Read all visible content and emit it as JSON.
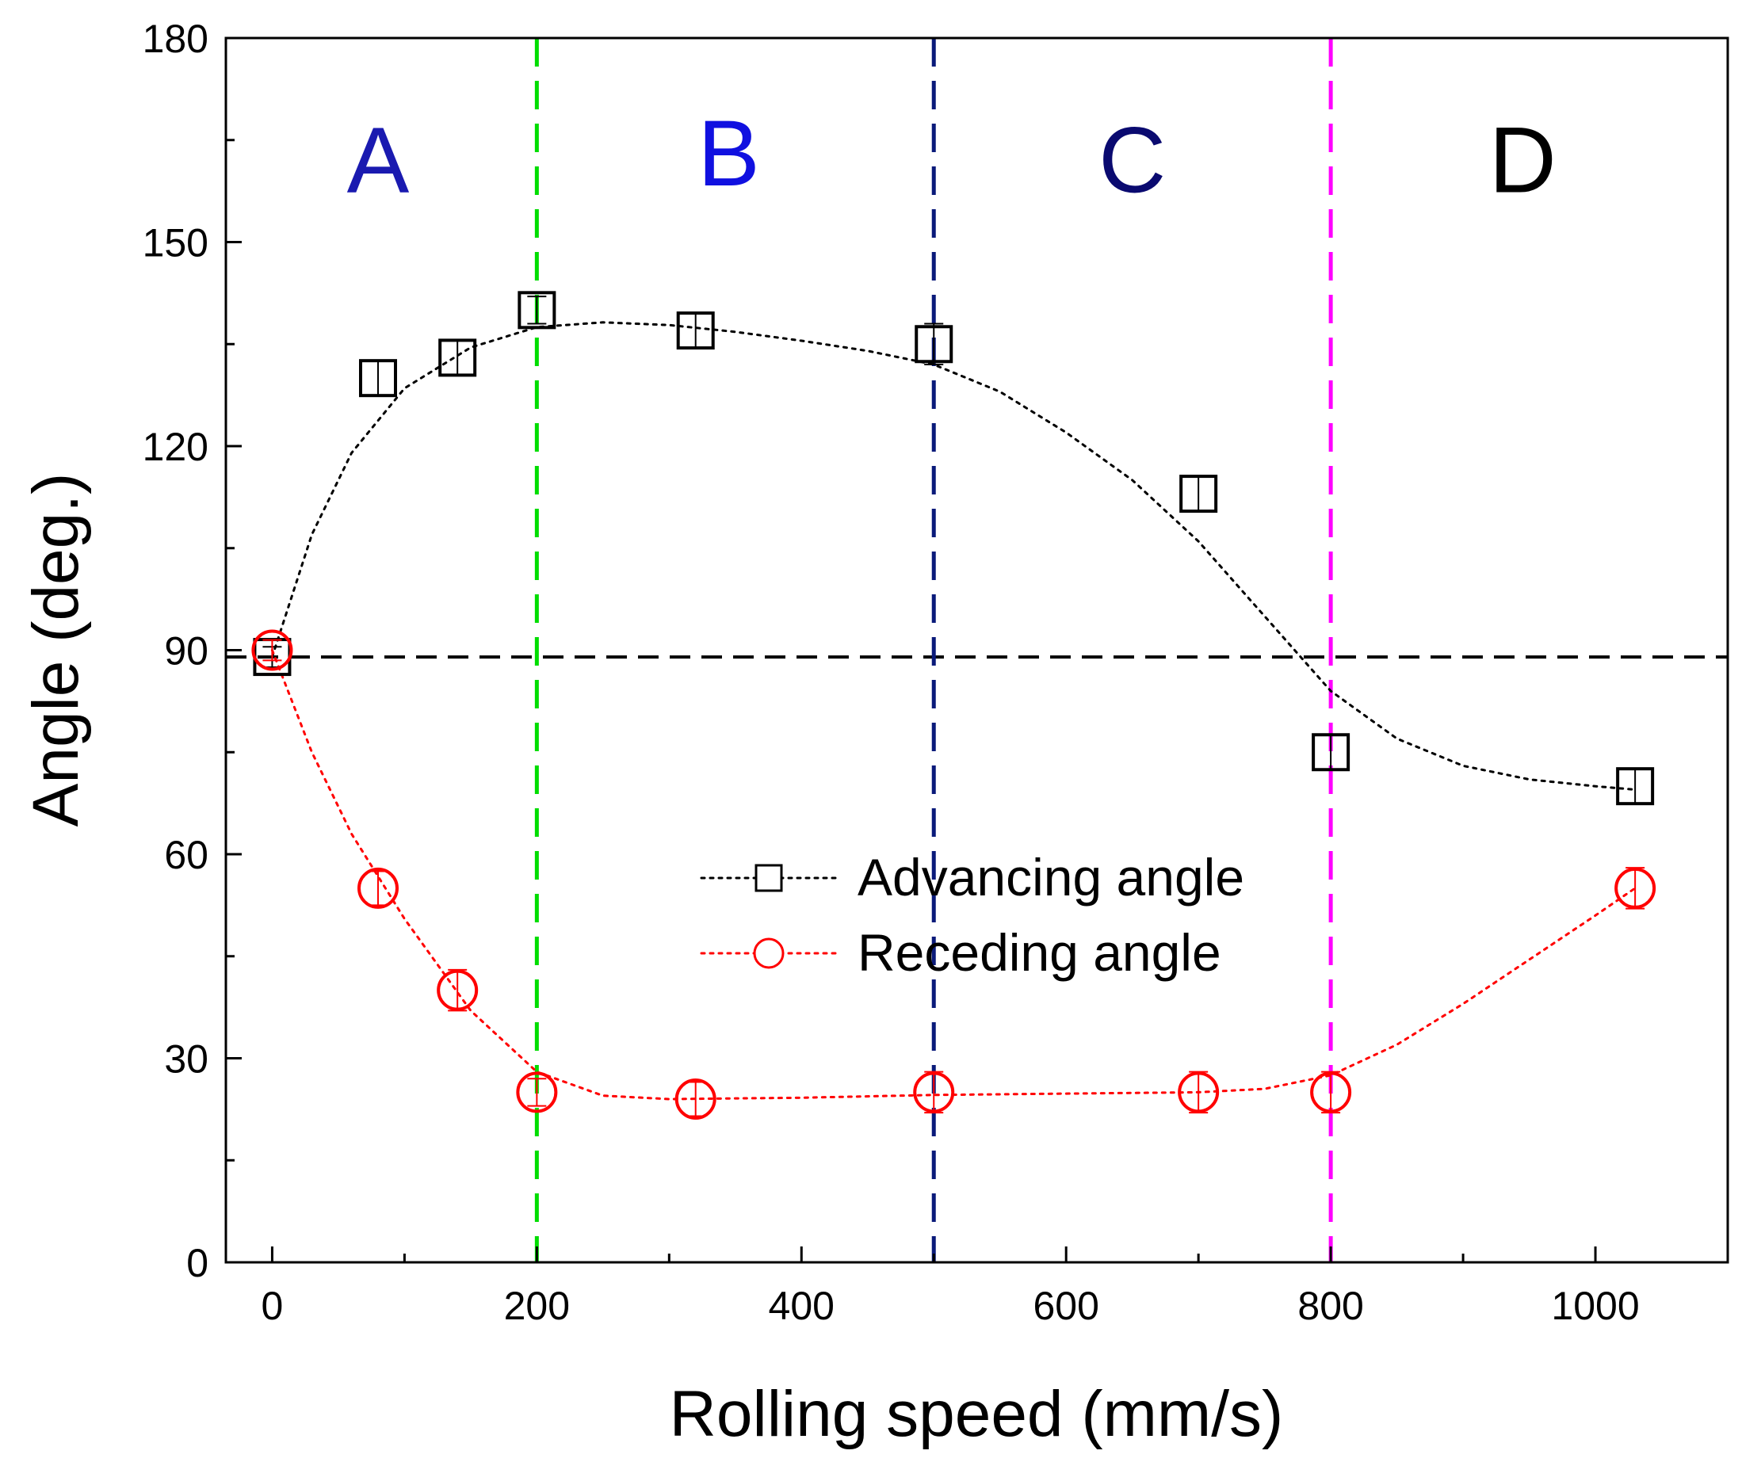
{
  "chart_data": {
    "type": "scatter",
    "title": "",
    "xlabel": "Rolling speed (mm/s)",
    "ylabel": "Angle (deg.)",
    "xlim": [
      -35,
      1100
    ],
    "ylim": [
      0,
      180
    ],
    "xticks": [
      0,
      200,
      400,
      600,
      800,
      1000
    ],
    "yticks": [
      0,
      30,
      60,
      90,
      120,
      150,
      180
    ],
    "x_minor_step": 100,
    "y_minor_step": 15,
    "grid": false,
    "legend_placement": "center",
    "series": [
      {
        "name": "Advancing angle",
        "marker": "square",
        "color": "#000000",
        "line": "dotted",
        "x": [
          0,
          80,
          140,
          200,
          320,
          500,
          700,
          800,
          1030
        ],
        "y": [
          89,
          130,
          133,
          140,
          137,
          135,
          113,
          75,
          70
        ],
        "error": [
          1.5,
          2.5,
          2.5,
          2,
          2.5,
          3,
          2.5,
          2.5,
          2.5
        ],
        "fit_x": [
          0,
          30,
          60,
          100,
          150,
          200,
          250,
          300,
          350,
          400,
          450,
          500,
          550,
          600,
          650,
          700,
          750,
          800,
          850,
          900,
          950,
          1000,
          1030
        ],
        "fit_y": [
          89,
          107,
          119,
          128.5,
          134.5,
          137.5,
          138.2,
          137.8,
          136.8,
          135.5,
          134,
          132,
          128,
          122,
          115,
          106,
          95,
          84,
          77,
          73,
          71,
          70,
          69.5
        ]
      },
      {
        "name": "Receding angle",
        "marker": "circle",
        "color": "#ff0000",
        "line": "dotted",
        "x": [
          0,
          80,
          140,
          200,
          320,
          500,
          700,
          800,
          1030
        ],
        "y": [
          90,
          55,
          40,
          25,
          24,
          25,
          25,
          25,
          55
        ],
        "error": [
          1.5,
          2.5,
          3,
          2,
          2.5,
          3,
          3,
          3,
          3
        ],
        "fit_x": [
          0,
          30,
          60,
          100,
          150,
          200,
          250,
          300,
          400,
          500,
          600,
          700,
          750,
          800,
          850,
          900,
          950,
          1000,
          1030
        ],
        "fit_y": [
          90,
          75,
          63,
          50.5,
          37,
          28,
          24.5,
          24,
          24.2,
          24.6,
          24.8,
          25,
          25.5,
          27.5,
          32,
          38,
          44.5,
          51,
          55
        ]
      }
    ],
    "reference_lines": [
      {
        "orientation": "horizontal",
        "value": 89,
        "color": "#000000"
      },
      {
        "orientation": "vertical",
        "value": 200,
        "color": "#00dd00"
      },
      {
        "orientation": "vertical",
        "value": 500,
        "color": "#0a1a7a"
      },
      {
        "orientation": "vertical",
        "value": 800,
        "color": "#ff00ff"
      }
    ],
    "region_labels": [
      {
        "text": "A",
        "x": 80,
        "y": 162,
        "color": "#1a1ab0"
      },
      {
        "text": "B",
        "x": 345,
        "y": 163,
        "color": "#1010e0"
      },
      {
        "text": "C",
        "x": 650,
        "y": 162,
        "color": "#0a0a70"
      },
      {
        "text": "D",
        "x": 945,
        "y": 162,
        "color": "#000000"
      }
    ]
  }
}
